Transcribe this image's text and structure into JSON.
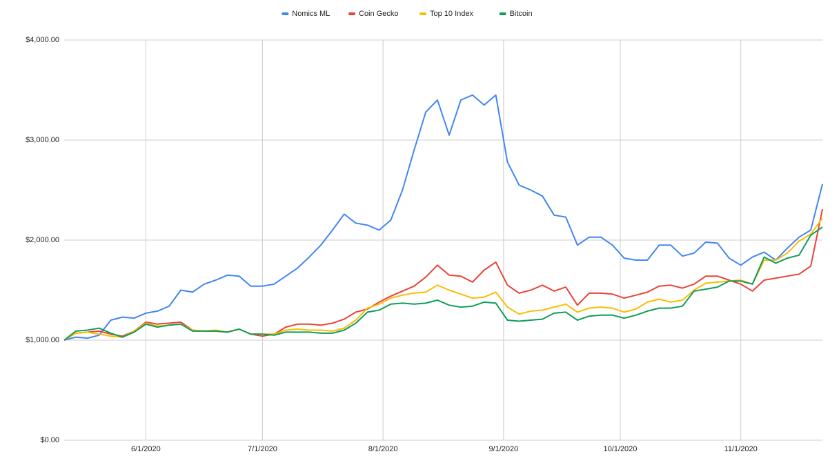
{
  "chart_data": {
    "type": "line",
    "x": [
      "5/11/2020",
      "5/14/2020",
      "5/17/2020",
      "5/20/2020",
      "5/23/2020",
      "5/26/2020",
      "5/29/2020",
      "6/1/2020",
      "6/4/2020",
      "6/7/2020",
      "6/10/2020",
      "6/13/2020",
      "6/16/2020",
      "6/19/2020",
      "6/22/2020",
      "6/25/2020",
      "6/28/2020",
      "7/1/2020",
      "7/4/2020",
      "7/7/2020",
      "7/10/2020",
      "7/13/2020",
      "7/16/2020",
      "7/19/2020",
      "7/22/2020",
      "7/25/2020",
      "7/28/2020",
      "7/31/2020",
      "8/3/2020",
      "8/6/2020",
      "8/9/2020",
      "8/12/2020",
      "8/15/2020",
      "8/18/2020",
      "8/21/2020",
      "8/24/2020",
      "8/27/2020",
      "8/30/2020",
      "9/2/2020",
      "9/5/2020",
      "9/8/2020",
      "9/11/2020",
      "9/14/2020",
      "9/17/2020",
      "9/20/2020",
      "9/23/2020",
      "9/26/2020",
      "9/29/2020",
      "10/2/2020",
      "10/5/2020",
      "10/8/2020",
      "10/11/2020",
      "10/14/2020",
      "10/17/2020",
      "10/20/2020",
      "10/23/2020",
      "10/26/2020",
      "10/29/2020",
      "11/1/2020",
      "11/4/2020",
      "11/7/2020",
      "11/10/2020",
      "11/13/2020",
      "11/16/2020",
      "11/19/2020",
      "11/22/2020"
    ],
    "series": [
      {
        "name": "Nomics ML",
        "color": "#4285f4",
        "values": [
          1000,
          1030,
          1020,
          1050,
          1200,
          1230,
          1220,
          1270,
          1290,
          1340,
          1500,
          1480,
          1560,
          1600,
          1650,
          1640,
          1540,
          1540,
          1560,
          1640,
          1720,
          1830,
          1950,
          2100,
          2260,
          2170,
          2150,
          2100,
          2200,
          2500,
          2900,
          3280,
          3400,
          3050,
          3400,
          3450,
          3350,
          3450,
          2780,
          2550,
          2500,
          2440,
          2250,
          2230,
          1950,
          2030,
          2030,
          1950,
          1820,
          1800,
          1800,
          1950,
          1950,
          1840,
          1870,
          1980,
          1970,
          1820,
          1750,
          1830,
          1880,
          1800,
          1920,
          2030,
          2100,
          2560
        ]
      },
      {
        "name": "Coin Gecko",
        "color": "#ea4335",
        "values": [
          1000,
          1070,
          1080,
          1090,
          1060,
          1040,
          1090,
          1180,
          1160,
          1170,
          1180,
          1100,
          1090,
          1090,
          1080,
          1110,
          1060,
          1040,
          1060,
          1130,
          1160,
          1160,
          1150,
          1170,
          1210,
          1280,
          1310,
          1380,
          1440,
          1490,
          1540,
          1630,
          1750,
          1650,
          1640,
          1580,
          1700,
          1780,
          1550,
          1470,
          1500,
          1550,
          1490,
          1530,
          1350,
          1470,
          1470,
          1460,
          1420,
          1450,
          1480,
          1540,
          1550,
          1520,
          1560,
          1640,
          1640,
          1600,
          1560,
          1490,
          1600,
          1620,
          1640,
          1660,
          1740,
          2310
        ]
      },
      {
        "name": "Top 10 Index",
        "color": "#fbbc04",
        "values": [
          1000,
          1070,
          1080,
          1060,
          1040,
          1030,
          1090,
          1170,
          1140,
          1150,
          1160,
          1100,
          1090,
          1100,
          1080,
          1110,
          1060,
          1060,
          1060,
          1100,
          1110,
          1100,
          1100,
          1090,
          1120,
          1200,
          1320,
          1360,
          1420,
          1450,
          1470,
          1480,
          1550,
          1500,
          1460,
          1420,
          1430,
          1480,
          1330,
          1260,
          1290,
          1300,
          1330,
          1360,
          1280,
          1320,
          1330,
          1320,
          1280,
          1310,
          1380,
          1410,
          1380,
          1400,
          1500,
          1570,
          1580,
          1590,
          1600,
          1560,
          1800,
          1800,
          1870,
          1990,
          2060,
          2220
        ]
      },
      {
        "name": "Bitcoin",
        "color": "#0f9d58",
        "values": [
          1000,
          1090,
          1100,
          1120,
          1070,
          1030,
          1080,
          1160,
          1130,
          1150,
          1160,
          1090,
          1090,
          1090,
          1080,
          1110,
          1060,
          1060,
          1050,
          1080,
          1080,
          1080,
          1070,
          1070,
          1100,
          1170,
          1280,
          1300,
          1360,
          1370,
          1360,
          1370,
          1400,
          1350,
          1330,
          1340,
          1380,
          1370,
          1200,
          1190,
          1200,
          1210,
          1270,
          1280,
          1200,
          1240,
          1250,
          1250,
          1220,
          1250,
          1290,
          1320,
          1320,
          1340,
          1490,
          1510,
          1530,
          1590,
          1590,
          1560,
          1830,
          1770,
          1820,
          1850,
          2050,
          2130
        ]
      }
    ],
    "xlim": [
      "5/11/2020",
      "11/22/2020"
    ],
    "xticks": [
      "6/1/2020",
      "7/1/2020",
      "8/1/2020",
      "9/1/2020",
      "10/1/2020",
      "11/1/2020"
    ],
    "ylim": [
      0,
      4000
    ],
    "yticks": [
      {
        "value": 0,
        "label": "$0.00"
      },
      {
        "value": 1000,
        "label": "$1,000.00"
      },
      {
        "value": 2000,
        "label": "$2,000.00"
      },
      {
        "value": 3000,
        "label": "$3,000.00"
      },
      {
        "value": 4000,
        "label": "$4,000.00"
      }
    ],
    "grid": true,
    "legend": "top"
  }
}
